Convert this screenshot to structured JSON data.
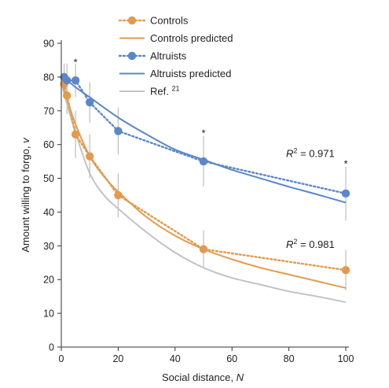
{
  "chart_data": {
    "type": "line",
    "xlabel_main": "Social distance, ",
    "xlabel_var": "N",
    "ylabel_main": "Amount willing to forgo, ",
    "ylabel_var": "v",
    "xlim": [
      0,
      100
    ],
    "ylim": [
      0,
      90
    ],
    "x_ticks": [
      0,
      20,
      40,
      60,
      80,
      100
    ],
    "y_ticks": [
      0,
      10,
      20,
      30,
      40,
      50,
      60,
      70,
      80,
      90
    ],
    "x_tick_labels": [
      "0",
      "20",
      "40",
      "60",
      "80",
      "100"
    ],
    "y_tick_labels": [
      "0",
      "10",
      "20",
      "30",
      "40",
      "50",
      "60",
      "70",
      "80",
      "90"
    ],
    "colors": {
      "controls": "#e39a4e",
      "altruists": "#5b87c9",
      "ref": "#c3c3c3",
      "errorbar": "#bdbdbd"
    },
    "series": [
      {
        "name": "Controls",
        "kind": "observed",
        "x": [
          1,
          2,
          5,
          10,
          20,
          50,
          100
        ],
        "y": [
          78,
          74.5,
          63,
          56.5,
          45,
          29,
          22.8
        ],
        "err": [
          4,
          5.5,
          7,
          6.5,
          6.5,
          5.5,
          6
        ]
      },
      {
        "name": "Controls predicted",
        "kind": "predicted",
        "x": [
          0,
          1,
          2,
          5,
          10,
          15,
          20,
          30,
          40,
          50,
          60,
          70,
          80,
          90,
          100
        ],
        "y": [
          78.5,
          76,
          73.5,
          66,
          56.5,
          50.5,
          46,
          38.5,
          33,
          29,
          26,
          23.5,
          21.5,
          19.5,
          17.5
        ]
      },
      {
        "name": "Altruists",
        "kind": "observed",
        "x": [
          1,
          2,
          5,
          10,
          20,
          50,
          100
        ],
        "y": [
          80,
          79,
          79,
          72.5,
          64,
          55,
          45.5
        ],
        "err": [
          4,
          5,
          5,
          6,
          7,
          7.5,
          8
        ]
      },
      {
        "name": "Altruists predicted",
        "kind": "predicted",
        "x": [
          0,
          5,
          10,
          20,
          30,
          40,
          50,
          60,
          70,
          80,
          90,
          100
        ],
        "y": [
          80.5,
          77,
          74,
          68,
          63,
          58.5,
          55.5,
          52.5,
          50,
          47.5,
          45.2,
          42.8
        ]
      },
      {
        "name": "Ref. ",
        "name_sup": "21",
        "kind": "reference",
        "x": [
          0,
          2,
          5,
          10,
          15,
          20,
          30,
          40,
          50,
          60,
          70,
          80,
          90,
          100
        ],
        "y": [
          78.5,
          72,
          63.5,
          51.5,
          45,
          41,
          34,
          28,
          23.5,
          20.5,
          18.5,
          16.5,
          15,
          13.3
        ]
      }
    ],
    "annotations": [
      {
        "text": "*",
        "x": 5,
        "y": 84.5
      },
      {
        "text": "*",
        "x": 50,
        "y": 63.5
      },
      {
        "text": "*",
        "x": 100,
        "y": 54.5
      }
    ],
    "r2_labels": [
      {
        "pre": "R",
        "sup": "2",
        "post": " = 0.971",
        "x": 79,
        "y": 57.5
      },
      {
        "pre": "R",
        "sup": "2",
        "post": " = 0.981",
        "x": 79,
        "y": 30.5
      }
    ],
    "legend": {
      "placement": "top-center"
    },
    "grid": false
  }
}
